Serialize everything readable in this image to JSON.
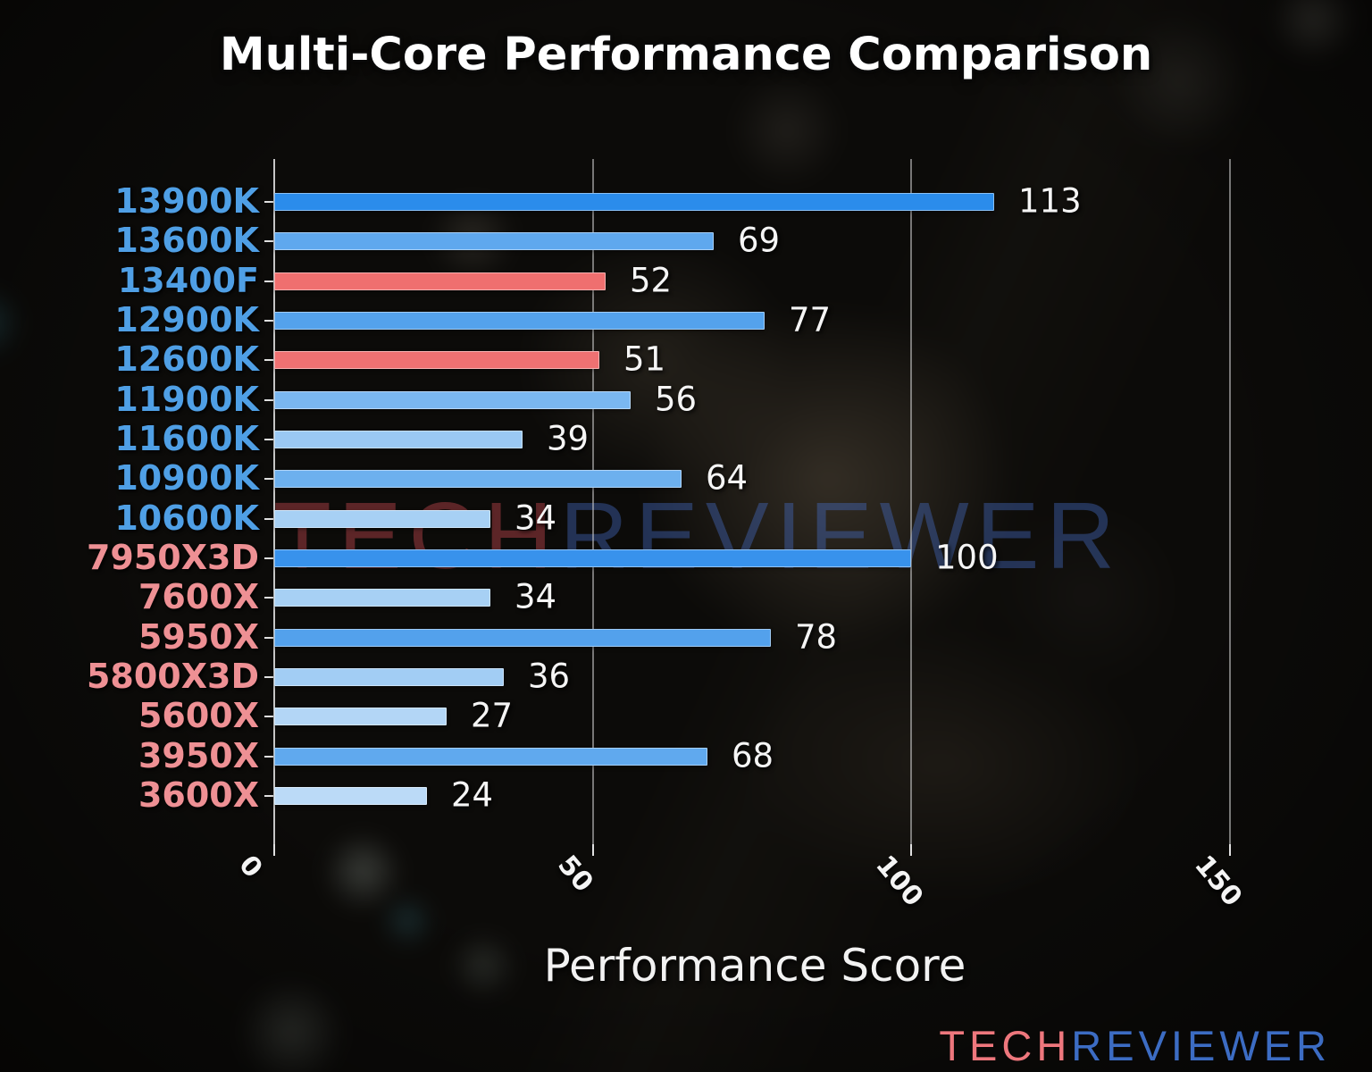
{
  "figure": {
    "title": "Multi-Core Performance Comparison",
    "xlabel": "Performance Score"
  },
  "watermark": {
    "tech": "TECH",
    "reviewer": "REVIEWER",
    "tech_color": "rgba(205,75,82,0.42)",
    "reviewer_color": "rgba(70,110,200,0.40)"
  },
  "brand": {
    "tech": "TECH",
    "reviewer": "REVIEWER",
    "tech_color": "#ee777d",
    "reviewer_color": "#3c6cc3"
  },
  "axis": {
    "spine_color": "rgba(232,232,232,0.85)",
    "grid_color": "rgba(210,210,210,0.55)",
    "tick_color": "#e0e0e0",
    "tick_label_color": "#f4f4f4",
    "value_label_color": "#f5f5f5"
  },
  "vendor_label_colors": {
    "intel": "#4f9fe5",
    "amd": "#ee9094"
  },
  "chart_data": {
    "type": "bar",
    "orientation": "horizontal",
    "title": "Multi-Core Performance Comparison",
    "xlabel": "Performance Score",
    "xlim": [
      0,
      159
    ],
    "xticks": [
      0,
      50,
      100,
      150
    ],
    "grid": true,
    "legend": false,
    "categories": [
      "13900K",
      "13600K",
      "13400F",
      "12900K",
      "12600K",
      "11900K",
      "11600K",
      "10900K",
      "10600K",
      "7950X3D",
      "7600X",
      "5950X",
      "5800X3D",
      "5600X",
      "3950X",
      "3600X"
    ],
    "values": [
      113,
      69,
      52,
      77,
      51,
      56,
      39,
      64,
      34,
      100,
      34,
      78,
      36,
      27,
      68,
      24
    ],
    "bar_colors": [
      "#2b8ceb",
      "#5fa8ee",
      "#ef6f6f",
      "#54a2ec",
      "#ef7172",
      "#7ab7f0",
      "#9ac8f3",
      "#6db0ee",
      "#a7d0f4",
      "#3892ec",
      "#a7d0f4",
      "#53a1ec",
      "#a2cdf4",
      "#b3d6f6",
      "#60a9ee",
      "#bbdaf7"
    ],
    "category_vendors": [
      "intel",
      "intel",
      "intel",
      "intel",
      "intel",
      "intel",
      "intel",
      "intel",
      "intel",
      "amd",
      "amd",
      "amd",
      "amd",
      "amd",
      "amd",
      "amd"
    ]
  }
}
